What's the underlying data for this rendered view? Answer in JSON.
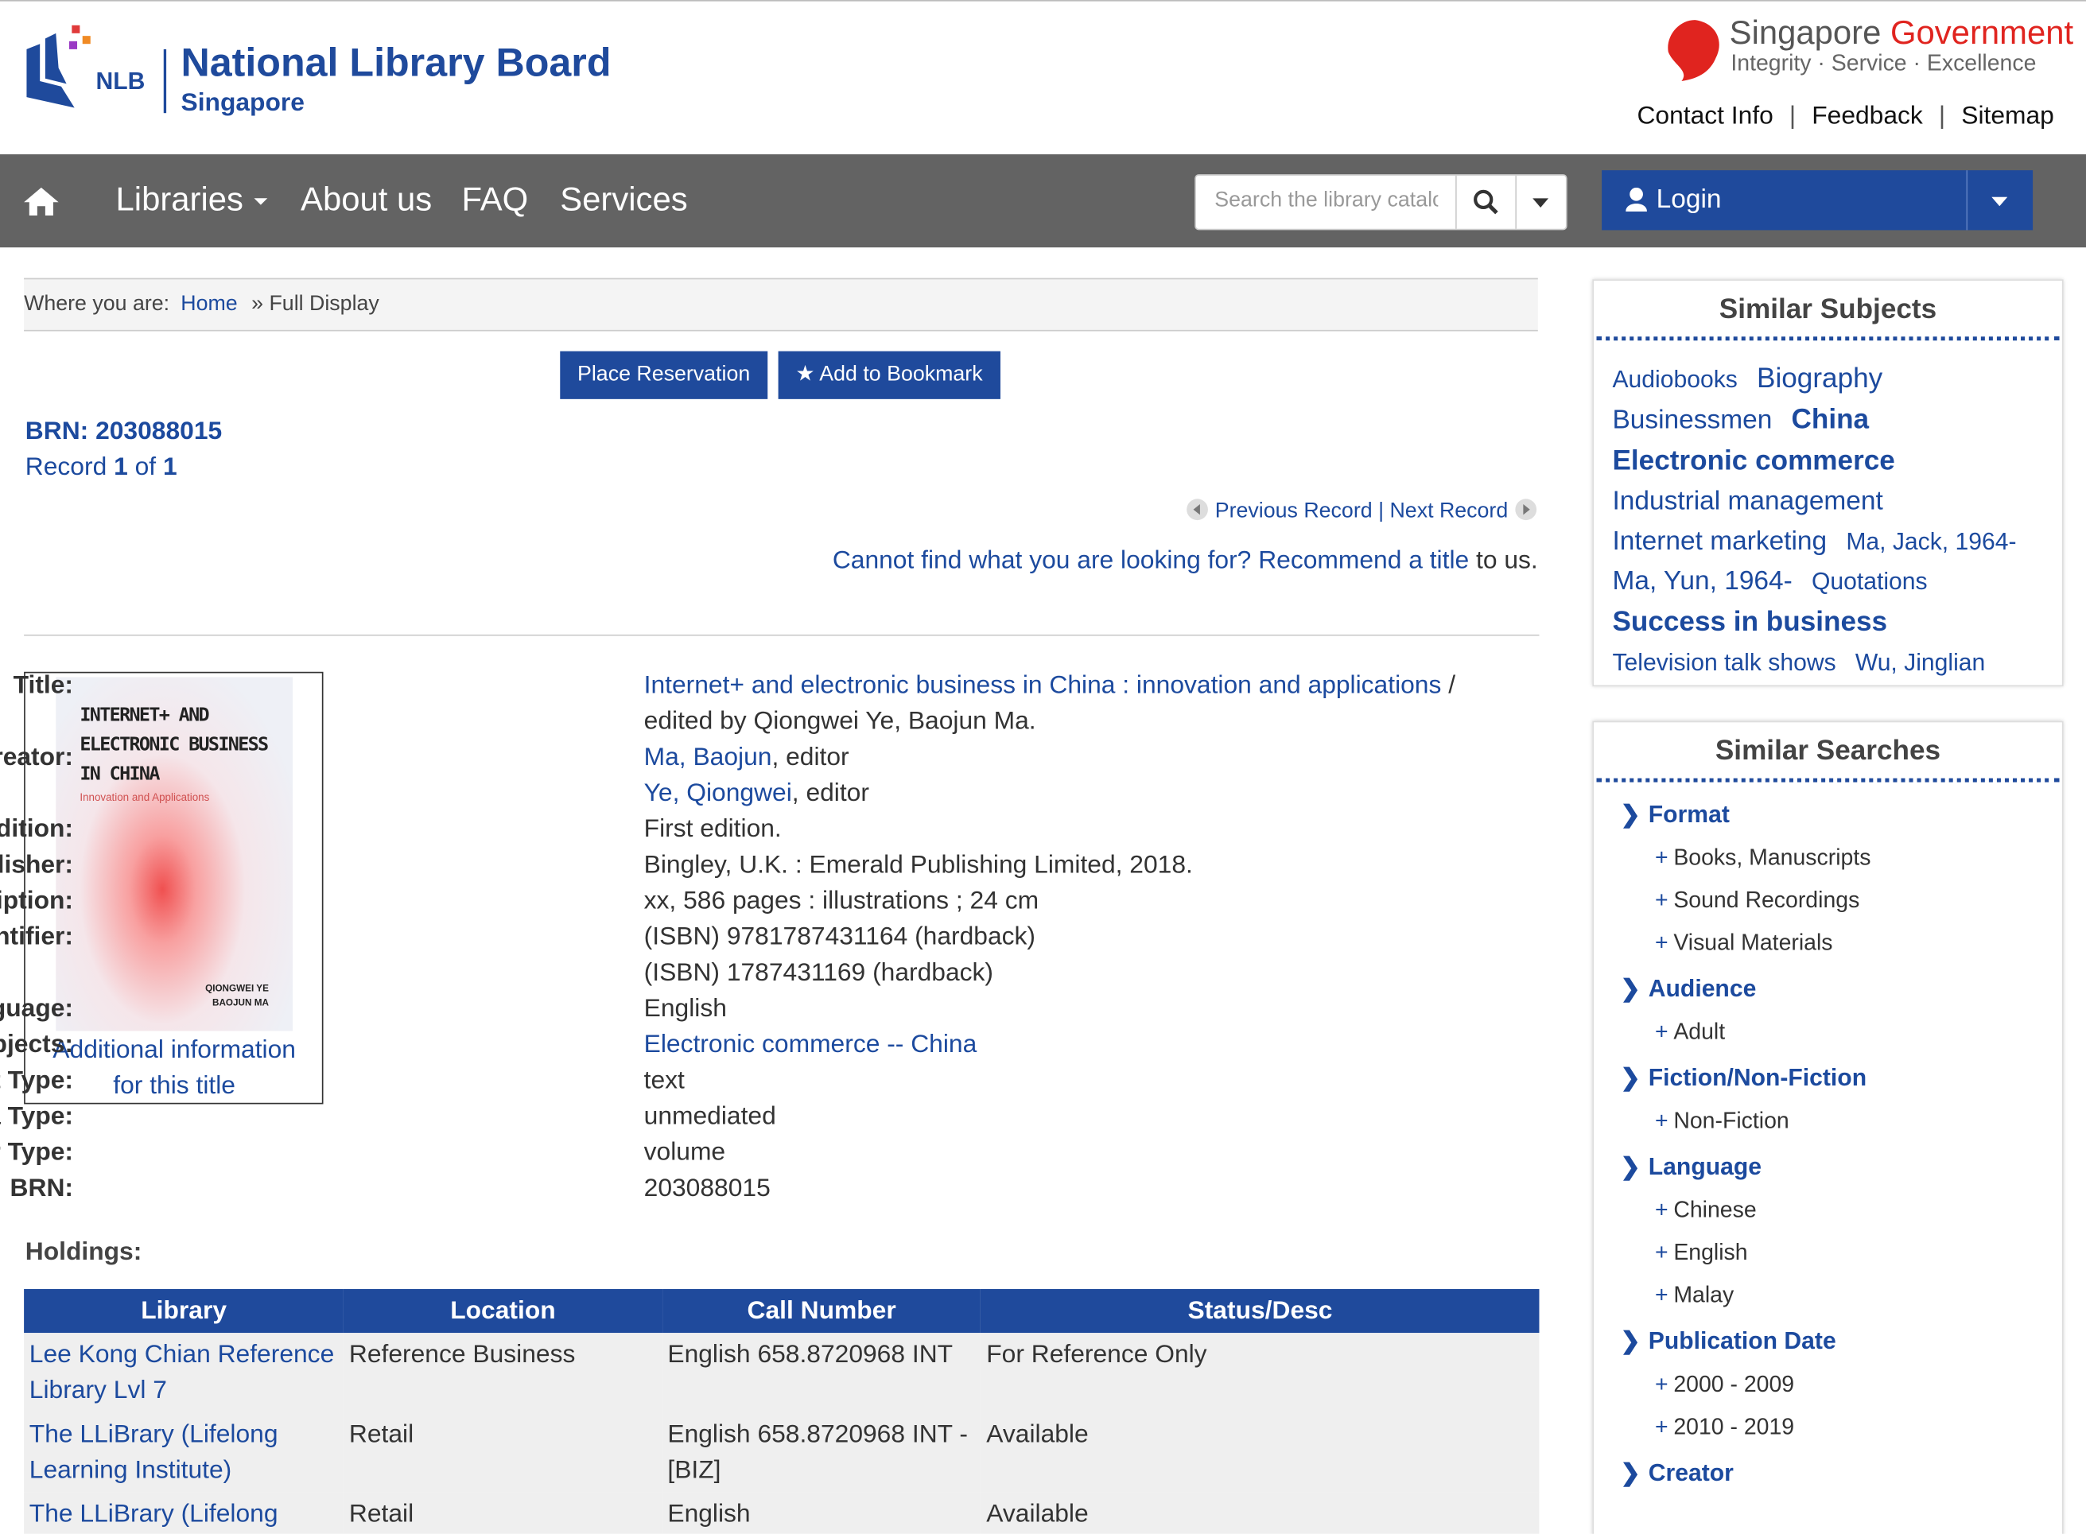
{
  "header": {
    "logo_abbr": "NLB",
    "logo_name": "National Library Board",
    "logo_country": "Singapore",
    "gov_name_1": "Singapore",
    "gov_name_2": "Government",
    "gov_motto": "Integrity · Service · Excellence",
    "links": [
      "Contact Info",
      "Feedback",
      "Sitemap"
    ],
    "separator": "|"
  },
  "nav": {
    "items": [
      "Libraries",
      "About us",
      "FAQ",
      "Services"
    ],
    "search_placeholder": "Search the library catalogue",
    "login": "Login"
  },
  "breadcrumb": {
    "label": "Where you are:",
    "home": "Home",
    "current": "» Full Display"
  },
  "actions": [
    "Place Reservation",
    "Add to Bookmark"
  ],
  "record": {
    "brn_label": "BRN:",
    "brn": "203088015",
    "record_word": "Record",
    "index": "1",
    "of_word": "of",
    "total": "1",
    "previous": "Previous Record",
    "separator": "|",
    "next": "Next Record",
    "recommend_prefix": "Cannot find what you are looking for?",
    "recommend_link": "Recommend a title",
    "recommend_suffix": "to us."
  },
  "cover": {
    "line1": "INTERNET+ AND",
    "line2": "ELECTRONIC BUSINESS",
    "line3": "IN CHINA",
    "subtitle": "Innovation and Applications",
    "author1": "QIONGWEI YE",
    "author2": "BAOJUN MA",
    "caption": "Additional information for this title"
  },
  "details": [
    {
      "label": "Title:",
      "lines": [
        {
          "link": "Internet+ and electronic business in China : innovation and applications",
          "text": " /"
        },
        {
          "text": "edited by Qiongwei Ye, Baojun Ma."
        }
      ]
    },
    {
      "label": "Creator:",
      "lines": [
        {
          "link": "Ma, Baojun",
          "text": ", editor"
        },
        {
          "link": "Ye, Qiongwei",
          "text": ", editor"
        }
      ]
    },
    {
      "label": "Edition:",
      "lines": [
        {
          "text": "First edition."
        }
      ]
    },
    {
      "label": "Publisher:",
      "lines": [
        {
          "text": "Bingley, U.K. : Emerald Publishing Limited, 2018."
        }
      ]
    },
    {
      "label": "Physical Description:",
      "lines": [
        {
          "text": "xx, 586 pages : illustrations ; 24 cm"
        }
      ]
    },
    {
      "label": "Identifier:",
      "lines": [
        {
          "text": "(ISBN) 9781787431164 (hardback)"
        },
        {
          "text": "(ISBN) 1787431169 (hardback)"
        }
      ]
    },
    {
      "label": "Language:",
      "lines": [
        {
          "text": "English"
        }
      ]
    },
    {
      "label": "Subjects:",
      "lines": [
        {
          "link": "Electronic commerce -- China"
        }
      ]
    },
    {
      "label": "Content Type:",
      "lines": [
        {
          "text": "text"
        }
      ]
    },
    {
      "label": "Media Type:",
      "lines": [
        {
          "text": "unmediated"
        }
      ]
    },
    {
      "label": "Carrier Type:",
      "lines": [
        {
          "text": "volume"
        }
      ]
    },
    {
      "label": "BRN:",
      "lines": [
        {
          "text": "203088015"
        }
      ]
    }
  ],
  "holdings": {
    "title": "Holdings:",
    "headers": [
      "Library",
      "Location",
      "Call Number",
      "Status/Desc"
    ],
    "rows": [
      [
        "Lee Kong Chian Reference Library Lvl 7",
        "Reference Business",
        "English 658.8720968 INT",
        "For Reference Only"
      ],
      [
        "The LLiBrary (Lifelong Learning Institute)",
        "Retail",
        "English 658.8720968 INT -[BIZ]",
        "Available"
      ],
      [
        "The LLiBrary (Lifelong",
        "Retail",
        "English",
        "Available"
      ]
    ]
  },
  "similar_subjects": {
    "title": "Similar Subjects",
    "tags": [
      {
        "text": "Audiobooks",
        "size": "small"
      },
      {
        "text": "Biography",
        "size": "large"
      },
      {
        "text": "Businessmen",
        "size": "medium"
      },
      {
        "text": "China",
        "size": "bold"
      },
      {
        "text": "Electronic commerce",
        "size": "bold"
      },
      {
        "text": "Industrial management",
        "size": "medium"
      },
      {
        "text": "Internet marketing",
        "size": "medium"
      },
      {
        "text": "Ma, Jack, 1964-",
        "size": "small"
      },
      {
        "text": "Ma, Yun, 1964-",
        "size": "medium"
      },
      {
        "text": "Quotations",
        "size": "small"
      },
      {
        "text": "Success in business",
        "size": "bold"
      },
      {
        "text": "Television talk shows",
        "size": "small"
      },
      {
        "text": "Wu, Jinglian",
        "size": "small"
      }
    ]
  },
  "similar_searches": {
    "title": "Similar Searches",
    "facets": [
      {
        "name": "Format",
        "items": [
          "Books, Manuscripts",
          "Sound Recordings",
          "Visual Materials"
        ]
      },
      {
        "name": "Audience",
        "items": [
          "Adult"
        ]
      },
      {
        "name": "Fiction/Non-Fiction",
        "items": [
          "Non-Fiction"
        ]
      },
      {
        "name": "Language",
        "items": [
          "Chinese",
          "English",
          "Malay"
        ]
      },
      {
        "name": "Publication Date",
        "items": [
          "2000 - 2009",
          "2010 - 2019"
        ]
      },
      {
        "name": "Creator",
        "items": []
      }
    ]
  }
}
